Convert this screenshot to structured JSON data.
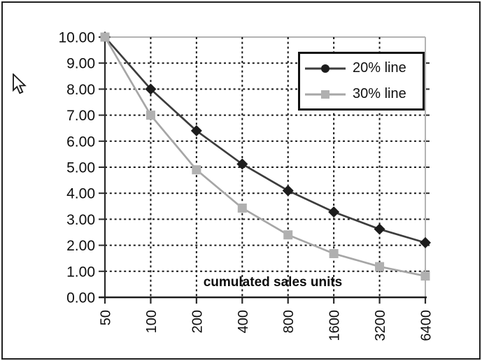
{
  "window": {
    "background": "#ffffff",
    "border_color": "#1f1f1f"
  },
  "chart_data": {
    "type": "line",
    "title": "cumulated sales units",
    "title_position": "inside-bottom",
    "categories": [
      "50",
      "100",
      "200",
      "400",
      "800",
      "1600",
      "3200",
      "6400"
    ],
    "x_axis_scale": "log2-categorical",
    "series": [
      {
        "name": "20% line",
        "values": [
          10.0,
          8.0,
          6.4,
          5.12,
          4.1,
          3.28,
          2.62,
          2.1
        ],
        "color": "#3d3d3d",
        "marker": "diamond",
        "marker_color": "#1c1c1c",
        "legend_marker": "circle"
      },
      {
        "name": "30% line",
        "values": [
          10.0,
          7.0,
          4.9,
          3.43,
          2.4,
          1.68,
          1.18,
          0.82
        ],
        "color": "#a6a6a6",
        "marker": "square",
        "marker_color": "#b0b0b0",
        "legend_marker": "square"
      }
    ],
    "y_ticks": [
      "10.00",
      "9.00",
      "8.00",
      "7.00",
      "6.00",
      "5.00",
      "4.00",
      "3.00",
      "2.00",
      "1.00",
      "0.00"
    ],
    "ylim": [
      0,
      10
    ],
    "xlabel": "",
    "ylabel": "",
    "grid": true,
    "grid_style": "dashed",
    "legend_position": "top-right",
    "colors": {
      "grid_dashed": "#161616",
      "grid_light": "#b3b3b3",
      "axis": "#2b2b2b",
      "text": "#0e0e0e"
    }
  },
  "cursor": {
    "type": "arrow-pointer"
  }
}
